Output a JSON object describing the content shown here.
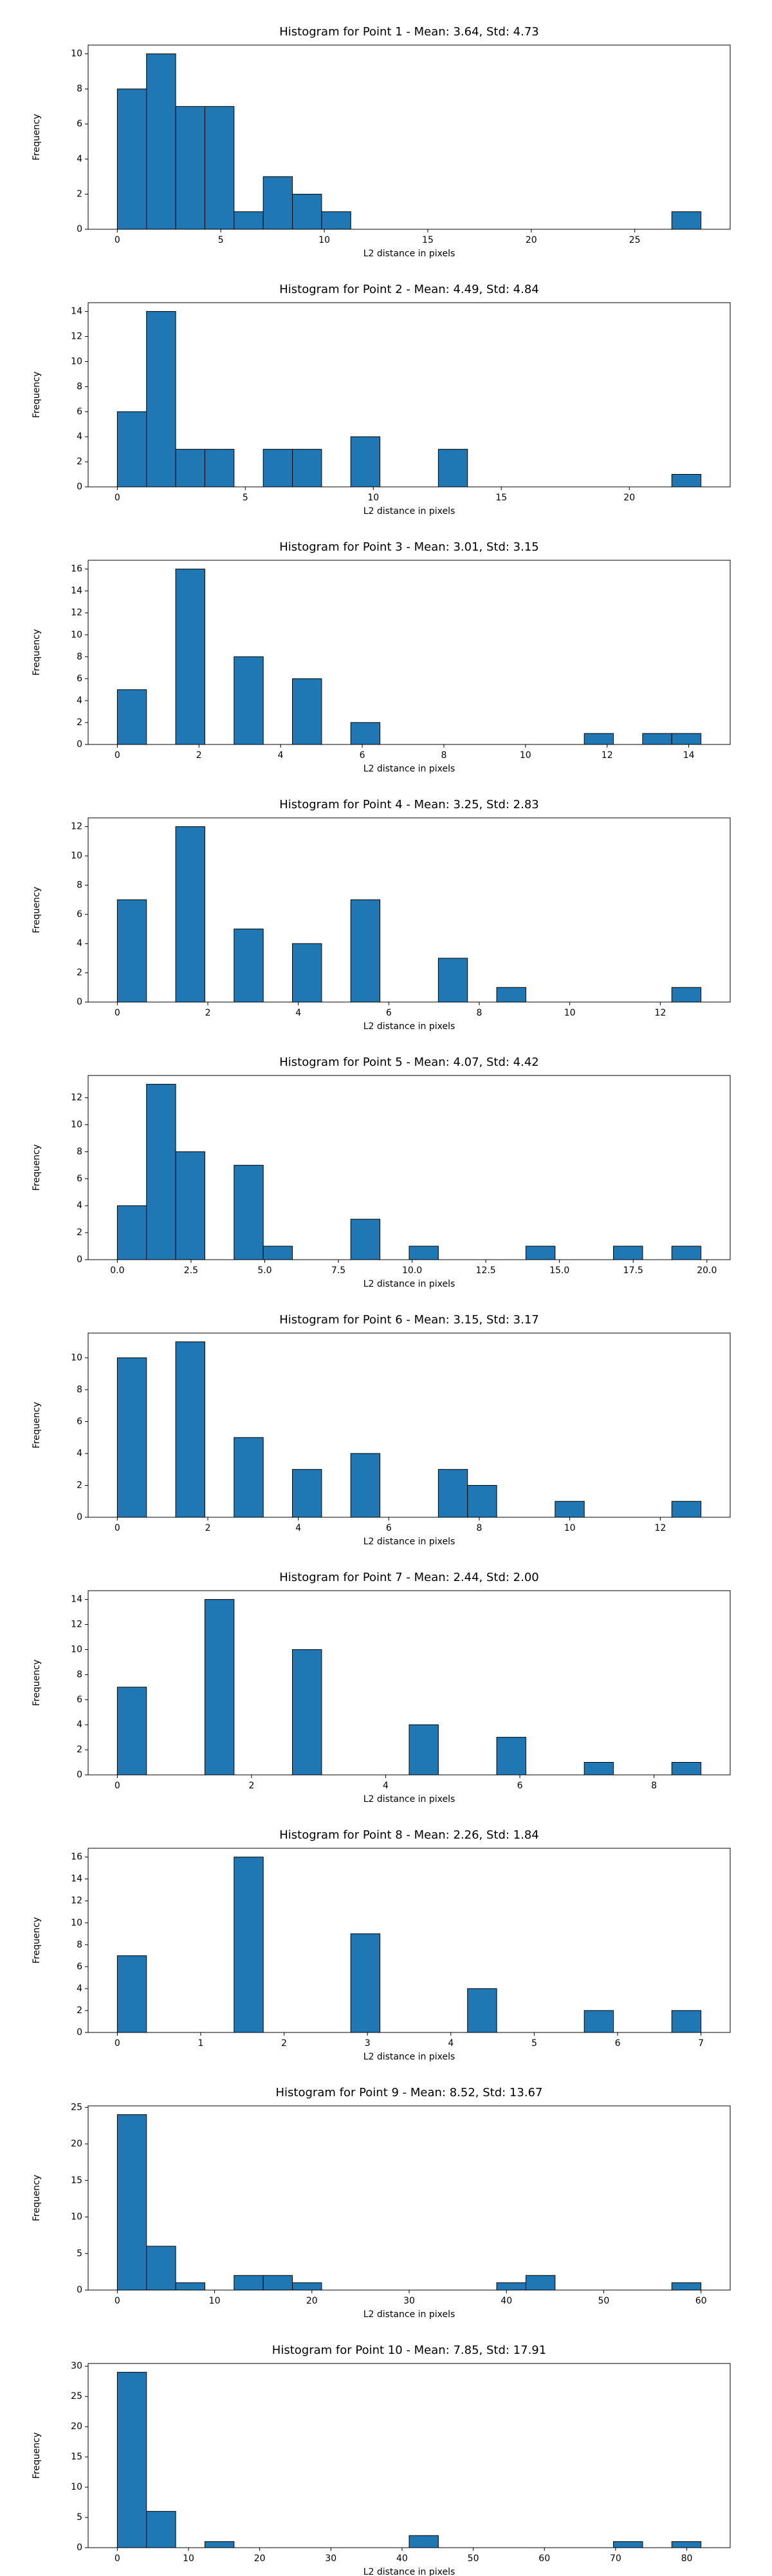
{
  "chart_data": [
    {
      "type": "histogram",
      "title": "Histogram for Point 1 - Mean: 3.64, Std: 4.73",
      "xlabel": "L2 distance in pixels",
      "ylabel": "Frequency",
      "color": "#1f77b4",
      "edgecolor": "#000000",
      "bins": [
        0,
        1.41,
        2.82,
        4.23,
        5.64,
        7.05,
        8.46,
        9.87,
        11.28,
        12.69,
        14.1,
        15.51,
        16.92,
        18.33,
        19.74,
        21.15,
        22.56,
        23.97,
        25.38,
        26.79,
        28.2
      ],
      "values": [
        8,
        10,
        7,
        7,
        1,
        3,
        2,
        1,
        0,
        0,
        0,
        0,
        0,
        0,
        0,
        0,
        0,
        0,
        0,
        1
      ],
      "xlim": [
        -1.41,
        29.61
      ],
      "ylim": [
        0,
        10.5
      ],
      "xticks": [
        0,
        5,
        10,
        15,
        20,
        25
      ],
      "yticks": [
        0,
        2,
        4,
        6,
        8,
        10
      ]
    },
    {
      "type": "histogram",
      "title": "Histogram for Point 2 - Mean: 4.49, Std: 4.84",
      "xlabel": "L2 distance in pixels",
      "ylabel": "Frequency",
      "color": "#1f77b4",
      "edgecolor": "#000000",
      "bins": [
        0,
        1.14,
        2.28,
        3.42,
        4.56,
        5.7,
        6.84,
        7.98,
        9.12,
        10.26,
        11.4,
        12.54,
        13.68,
        14.82,
        15.96,
        17.1,
        18.24,
        19.38,
        20.52,
        21.66,
        22.8
      ],
      "values": [
        6,
        14,
        3,
        3,
        0,
        3,
        3,
        0,
        4,
        0,
        0,
        3,
        0,
        0,
        0,
        0,
        0,
        0,
        0,
        1
      ],
      "xlim": [
        -1.14,
        23.94
      ],
      "ylim": [
        0,
        14.7
      ],
      "xticks": [
        0,
        5,
        10,
        15,
        20
      ],
      "yticks": [
        0,
        2,
        4,
        6,
        8,
        10,
        12,
        14
      ]
    },
    {
      "type": "histogram",
      "title": "Histogram for Point 3 - Mean: 3.01, Std: 3.15",
      "xlabel": "L2 distance in pixels",
      "ylabel": "Frequency",
      "color": "#1f77b4",
      "edgecolor": "#000000",
      "bins": [
        0,
        0.715,
        1.43,
        2.145,
        2.86,
        3.575,
        4.29,
        5.005,
        5.72,
        6.435,
        7.15,
        7.865,
        8.58,
        9.295,
        10.01,
        10.725,
        11.44,
        12.155,
        12.87,
        13.585,
        14.3
      ],
      "values": [
        5,
        0,
        16,
        0,
        8,
        0,
        6,
        0,
        2,
        0,
        0,
        0,
        0,
        0,
        0,
        0,
        1,
        0,
        1,
        1
      ],
      "xlim": [
        -0.715,
        15.015
      ],
      "ylim": [
        0,
        16.8
      ],
      "xticks": [
        0,
        2,
        4,
        6,
        8,
        10,
        12,
        14
      ],
      "yticks": [
        0,
        2,
        4,
        6,
        8,
        10,
        12,
        14,
        16
      ]
    },
    {
      "type": "histogram",
      "title": "Histogram for Point 4 - Mean: 3.25, Std: 2.83",
      "xlabel": "L2 distance in pixels",
      "ylabel": "Frequency",
      "color": "#1f77b4",
      "edgecolor": "#000000",
      "bins": [
        0,
        0.645,
        1.29,
        1.935,
        2.58,
        3.225,
        3.87,
        4.515,
        5.16,
        5.805,
        6.45,
        7.095,
        7.74,
        8.385,
        9.03,
        9.675,
        10.32,
        10.965,
        11.61,
        12.255,
        12.9
      ],
      "values": [
        7,
        0,
        12,
        0,
        5,
        0,
        4,
        0,
        7,
        0,
        0,
        3,
        0,
        1,
        0,
        0,
        0,
        0,
        0,
        1
      ],
      "xlim": [
        -0.645,
        13.545
      ],
      "ylim": [
        0,
        12.6
      ],
      "xticks": [
        0,
        2,
        4,
        6,
        8,
        10,
        12
      ],
      "yticks": [
        0,
        2,
        4,
        6,
        8,
        10,
        12
      ]
    },
    {
      "type": "histogram",
      "title": "Histogram for Point 5 - Mean: 4.07, Std: 4.42",
      "xlabel": "L2 distance in pixels",
      "ylabel": "Frequency",
      "color": "#1f77b4",
      "edgecolor": "#000000",
      "bins": [
        0,
        0.99,
        1.98,
        2.97,
        3.96,
        4.95,
        5.94,
        6.93,
        7.92,
        8.91,
        9.9,
        10.89,
        11.88,
        12.87,
        13.86,
        14.85,
        15.84,
        16.83,
        17.82,
        18.81,
        19.8
      ],
      "values": [
        4,
        13,
        8,
        0,
        7,
        1,
        0,
        0,
        3,
        0,
        1,
        0,
        0,
        0,
        1,
        0,
        0,
        1,
        0,
        1
      ],
      "xlim": [
        -0.99,
        20.79
      ],
      "ylim": [
        0,
        13.65
      ],
      "xticks": [
        {
          "value": 0,
          "label": "0.0"
        },
        {
          "value": 2.5,
          "label": "2.5"
        },
        {
          "value": 5,
          "label": "5.0"
        },
        {
          "value": 7.5,
          "label": "7.5"
        },
        {
          "value": 10,
          "label": "10.0"
        },
        {
          "value": 12.5,
          "label": "12.5"
        },
        {
          "value": 15,
          "label": "15.0"
        },
        {
          "value": 17.5,
          "label": "17.5"
        },
        {
          "value": 20,
          "label": "20.0"
        }
      ],
      "yticks": [
        0,
        2,
        4,
        6,
        8,
        10,
        12
      ]
    },
    {
      "type": "histogram",
      "title": "Histogram for Point 6 - Mean: 3.15, Std: 3.17",
      "xlabel": "L2 distance in pixels",
      "ylabel": "Frequency",
      "color": "#1f77b4",
      "edgecolor": "#000000",
      "bins": [
        0,
        0.645,
        1.29,
        1.935,
        2.58,
        3.225,
        3.87,
        4.515,
        5.16,
        5.805,
        6.45,
        7.095,
        7.74,
        8.385,
        9.03,
        9.675,
        10.32,
        10.965,
        11.61,
        12.255,
        12.9
      ],
      "values": [
        10,
        0,
        11,
        0,
        5,
        0,
        3,
        0,
        4,
        0,
        0,
        3,
        2,
        0,
        0,
        1,
        0,
        0,
        0,
        1
      ],
      "xlim": [
        -0.645,
        13.545
      ],
      "ylim": [
        0,
        11.55
      ],
      "xticks": [
        0,
        2,
        4,
        6,
        8,
        10,
        12
      ],
      "yticks": [
        0,
        2,
        4,
        6,
        8,
        10
      ]
    },
    {
      "type": "histogram",
      "title": "Histogram for Point 7 - Mean: 2.44, Std: 2.00",
      "xlabel": "L2 distance in pixels",
      "ylabel": "Frequency",
      "color": "#1f77b4",
      "edgecolor": "#000000",
      "bins": [
        0,
        0.435,
        0.87,
        1.305,
        1.74,
        2.175,
        2.61,
        3.045,
        3.48,
        3.915,
        4.35,
        4.785,
        5.22,
        5.655,
        6.09,
        6.525,
        6.96,
        7.395,
        7.83,
        8.265,
        8.7
      ],
      "values": [
        7,
        0,
        0,
        14,
        0,
        0,
        10,
        0,
        0,
        0,
        4,
        0,
        0,
        3,
        0,
        0,
        1,
        0,
        0,
        1
      ],
      "xlim": [
        -0.435,
        9.135
      ],
      "ylim": [
        0,
        14.7
      ],
      "xticks": [
        0,
        2,
        4,
        6,
        8
      ],
      "yticks": [
        0,
        2,
        4,
        6,
        8,
        10,
        12,
        14
      ]
    },
    {
      "type": "histogram",
      "title": "Histogram for Point 8 - Mean: 2.26, Std: 1.84",
      "xlabel": "L2 distance in pixels",
      "ylabel": "Frequency",
      "color": "#1f77b4",
      "edgecolor": "#000000",
      "bins": [
        0,
        0.35,
        0.7,
        1.05,
        1.4,
        1.75,
        2.1,
        2.45,
        2.8,
        3.15,
        3.5,
        3.85,
        4.2,
        4.55,
        4.9,
        5.25,
        5.6,
        5.95,
        6.3,
        6.65,
        7.0
      ],
      "values": [
        7,
        0,
        0,
        0,
        16,
        0,
        0,
        0,
        9,
        0,
        0,
        0,
        4,
        0,
        0,
        0,
        2,
        0,
        0,
        2
      ],
      "xlim": [
        -0.35,
        7.35
      ],
      "ylim": [
        0,
        16.8
      ],
      "xticks": [
        0,
        1,
        2,
        3,
        4,
        5,
        6,
        7
      ],
      "yticks": [
        0,
        2,
        4,
        6,
        8,
        10,
        12,
        14,
        16
      ]
    },
    {
      "type": "histogram",
      "title": "Histogram for Point 9 - Mean: 8.52, Std: 13.67",
      "xlabel": "L2 distance in pixels",
      "ylabel": "Frequency",
      "color": "#1f77b4",
      "edgecolor": "#000000",
      "bins": [
        0,
        3,
        6,
        9,
        12,
        15,
        18,
        21,
        24,
        27,
        30,
        33,
        36,
        39,
        42,
        45,
        48,
        51,
        54,
        57,
        60
      ],
      "values": [
        24,
        6,
        1,
        0,
        2,
        2,
        1,
        0,
        0,
        0,
        0,
        0,
        0,
        1,
        2,
        0,
        0,
        0,
        0,
        1
      ],
      "xlim": [
        -3,
        63
      ],
      "ylim": [
        0,
        25.2
      ],
      "xticks": [
        0,
        10,
        20,
        30,
        40,
        50,
        60
      ],
      "yticks": [
        0,
        5,
        10,
        15,
        20,
        25
      ]
    },
    {
      "type": "histogram",
      "title": "Histogram for Point 10 - Mean: 7.85, Std: 17.91",
      "xlabel": "L2 distance in pixels",
      "ylabel": "Frequency",
      "color": "#1f77b4",
      "edgecolor": "#000000",
      "bins": [
        0,
        4.1,
        8.2,
        12.3,
        16.4,
        20.5,
        24.6,
        28.7,
        32.8,
        36.9,
        41,
        45.1,
        49.2,
        53.3,
        57.4,
        61.5,
        65.6,
        69.7,
        73.8,
        77.9,
        82
      ],
      "values": [
        29,
        6,
        0,
        1,
        0,
        0,
        0,
        0,
        0,
        0,
        2,
        0,
        0,
        0,
        0,
        0,
        0,
        1,
        0,
        1
      ],
      "xlim": [
        -4.1,
        86.1
      ],
      "ylim": [
        0,
        30.45
      ],
      "xticks": [
        0,
        10,
        20,
        30,
        40,
        50,
        60,
        70,
        80
      ],
      "yticks": [
        0,
        5,
        10,
        15,
        20,
        25,
        30
      ]
    }
  ]
}
